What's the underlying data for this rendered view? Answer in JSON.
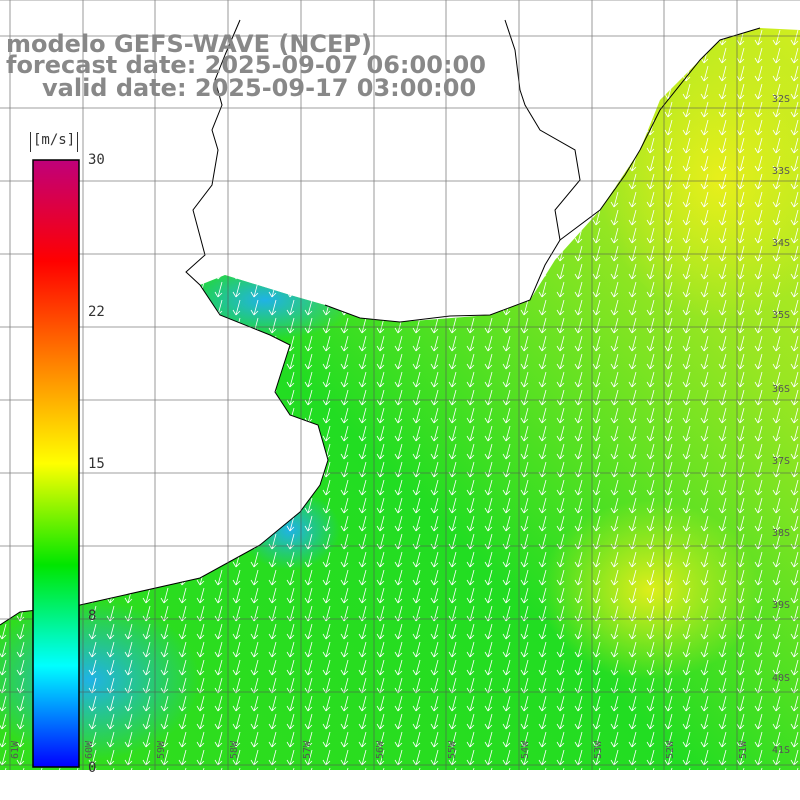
{
  "title": {
    "line1": "modelo GEFS-WAVE (NCEP)",
    "line2": "forecast date: 2025-09-07 06:00:00",
    "line3": "valid date: 2025-09-17 03:00:00"
  },
  "colorbar": {
    "unit": "[m/s]",
    "ticks": [
      "30",
      "22",
      "15",
      "8",
      "0"
    ],
    "min": 0,
    "max": 30,
    "colors": [
      "#0000ff",
      "#00ffff",
      "#00e600",
      "#ffff00",
      "#ff8000",
      "#ff0000",
      "#c0007a"
    ]
  },
  "lat_labels": [
    "32S",
    "33S",
    "34S",
    "35S",
    "36S",
    "37S",
    "38S",
    "39S",
    "40S",
    "41S"
  ],
  "lon_labels": [
    "61W",
    "60W",
    "59W",
    "58W",
    "57W",
    "56W",
    "55W",
    "54W",
    "53W",
    "52W",
    "51W"
  ],
  "colors": {
    "land": "#ffffff",
    "coast": "#000000",
    "grid": "#555555",
    "arrows": "#ffffff",
    "title": "#888888"
  }
}
